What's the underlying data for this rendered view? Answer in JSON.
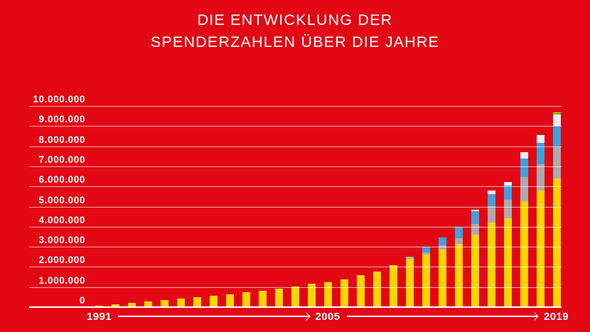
{
  "title": {
    "line1": "DIE ENTWICKLUNG DER",
    "line2": "SPENDERZAHLEN ÜBER DIE JAHRE"
  },
  "colors": {
    "background": "#E30613",
    "text": "#FFFFFF",
    "gridline": "rgba(255,255,255,0.65)",
    "axis_line": "#FFFFFF"
  },
  "chart_data": {
    "type": "bar",
    "stacked": true,
    "title": "DIE ENTWICKLUNG DER SPENDERZAHLEN ÜBER DIE JAHRE",
    "xlabel": "",
    "ylabel": "",
    "ylim": [
      0,
      10000000
    ],
    "grid": true,
    "legend_position": "none",
    "categories": [
      1991,
      1992,
      1993,
      1994,
      1995,
      1996,
      1997,
      1998,
      1999,
      2000,
      2001,
      2002,
      2003,
      2004,
      2005,
      2006,
      2007,
      2008,
      2009,
      2010,
      2011,
      2012,
      2013,
      2014,
      2015,
      2016,
      2017,
      2018,
      2019
    ],
    "series": [
      {
        "name": "yellow-base-segment",
        "color": "#FFD500",
        "values": [
          70000,
          150000,
          200000,
          270000,
          340000,
          410000,
          480000,
          560000,
          650000,
          740000,
          830000,
          920000,
          1010000,
          1150000,
          1230000,
          1390000,
          1590000,
          1770000,
          2080000,
          2390000,
          2620000,
          2880000,
          3160000,
          3620000,
          4210000,
          4410000,
          5270000,
          5800000,
          6410000
        ]
      },
      {
        "name": "gray-segment",
        "color": "#ABABAB",
        "values": [
          0,
          0,
          0,
          0,
          0,
          0,
          0,
          0,
          0,
          0,
          0,
          0,
          0,
          0,
          0,
          0,
          0,
          0,
          0,
          120000,
          110000,
          200000,
          270000,
          530000,
          820000,
          920000,
          1180000,
          1290000,
          1530000
        ]
      },
      {
        "name": "blue-segment",
        "color": "#3FA0DC",
        "values": [
          0,
          0,
          0,
          0,
          0,
          0,
          0,
          0,
          0,
          0,
          0,
          0,
          0,
          0,
          0,
          0,
          0,
          0,
          0,
          0,
          290000,
          370000,
          570000,
          610000,
          590000,
          730000,
          940000,
          1060000,
          1060000
        ]
      },
      {
        "name": "white-segment",
        "color": "#EDEDED",
        "values": [
          0,
          0,
          0,
          0,
          0,
          0,
          0,
          0,
          0,
          0,
          0,
          0,
          0,
          0,
          0,
          0,
          0,
          0,
          0,
          0,
          0,
          0,
          0,
          100000,
          180000,
          170000,
          320000,
          410000,
          590000
        ]
      },
      {
        "name": "green-segment",
        "color": "#5CB130",
        "values": [
          0,
          0,
          0,
          0,
          0,
          0,
          0,
          0,
          0,
          0,
          0,
          0,
          0,
          0,
          0,
          0,
          0,
          0,
          0,
          0,
          0,
          0,
          0,
          0,
          0,
          0,
          0,
          0,
          60000
        ]
      },
      {
        "name": "yellow-top-segment",
        "color": "#FFD500",
        "values": [
          0,
          0,
          0,
          0,
          0,
          0,
          0,
          0,
          0,
          0,
          0,
          0,
          0,
          0,
          0,
          0,
          0,
          0,
          0,
          0,
          0,
          0,
          0,
          0,
          0,
          0,
          0,
          0,
          30000
        ]
      }
    ],
    "y_ticks": [
      "10.000.000",
      "9.000.000",
      "8.000.000",
      "7.000.000",
      "6.000.000",
      "5.000.000",
      "4.000.000",
      "3.000.000",
      "2.000.000",
      "1.000.000",
      "0"
    ],
    "x_axis_labels": [
      "1991",
      "2005",
      "2019"
    ]
  }
}
